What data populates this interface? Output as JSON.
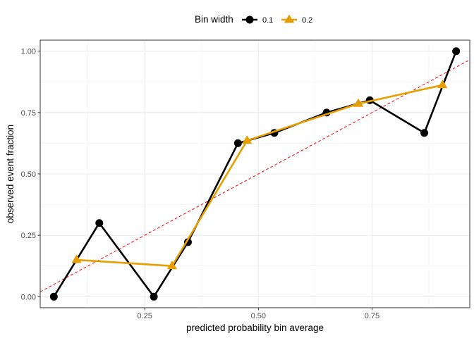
{
  "chart_data": {
    "type": "line",
    "xlabel": "predicted probability bin average",
    "ylabel": "observed event fraction",
    "xlim": [
      0.02,
      0.965
    ],
    "ylim": [
      -0.045,
      1.045
    ],
    "x_ticks": [
      0.25,
      0.5,
      0.75
    ],
    "x_tick_labels": [
      "0.25",
      "0.50",
      "0.75"
    ],
    "y_ticks": [
      0,
      0.25,
      0.5,
      0.75,
      1.0
    ],
    "y_tick_labels": [
      "0.00",
      "0.25",
      "0.50",
      "0.75",
      "1.00"
    ],
    "grid": true,
    "legend": {
      "title": "Bin width",
      "position": "top"
    },
    "series": [
      {
        "name": "0.1",
        "marker": "circle",
        "color": "#000000",
        "x": [
          0.05,
          0.15,
          0.27,
          0.345,
          0.455,
          0.535,
          0.65,
          0.745,
          0.865,
          0.935
        ],
        "y": [
          0.0,
          0.3,
          0.0,
          0.222,
          0.625,
          0.667,
          0.75,
          0.8,
          0.667,
          1.0
        ]
      },
      {
        "name": "0.2",
        "marker": "triangle",
        "color": "#E69F00",
        "x": [
          0.1,
          0.31,
          0.475,
          0.72,
          0.905
        ],
        "y": [
          0.15,
          0.125,
          0.636,
          0.786,
          0.862
        ]
      }
    ],
    "reference_line": {
      "label": "",
      "color": "#FF0000",
      "style": "dashed",
      "slope": 1,
      "intercept": 0
    }
  }
}
